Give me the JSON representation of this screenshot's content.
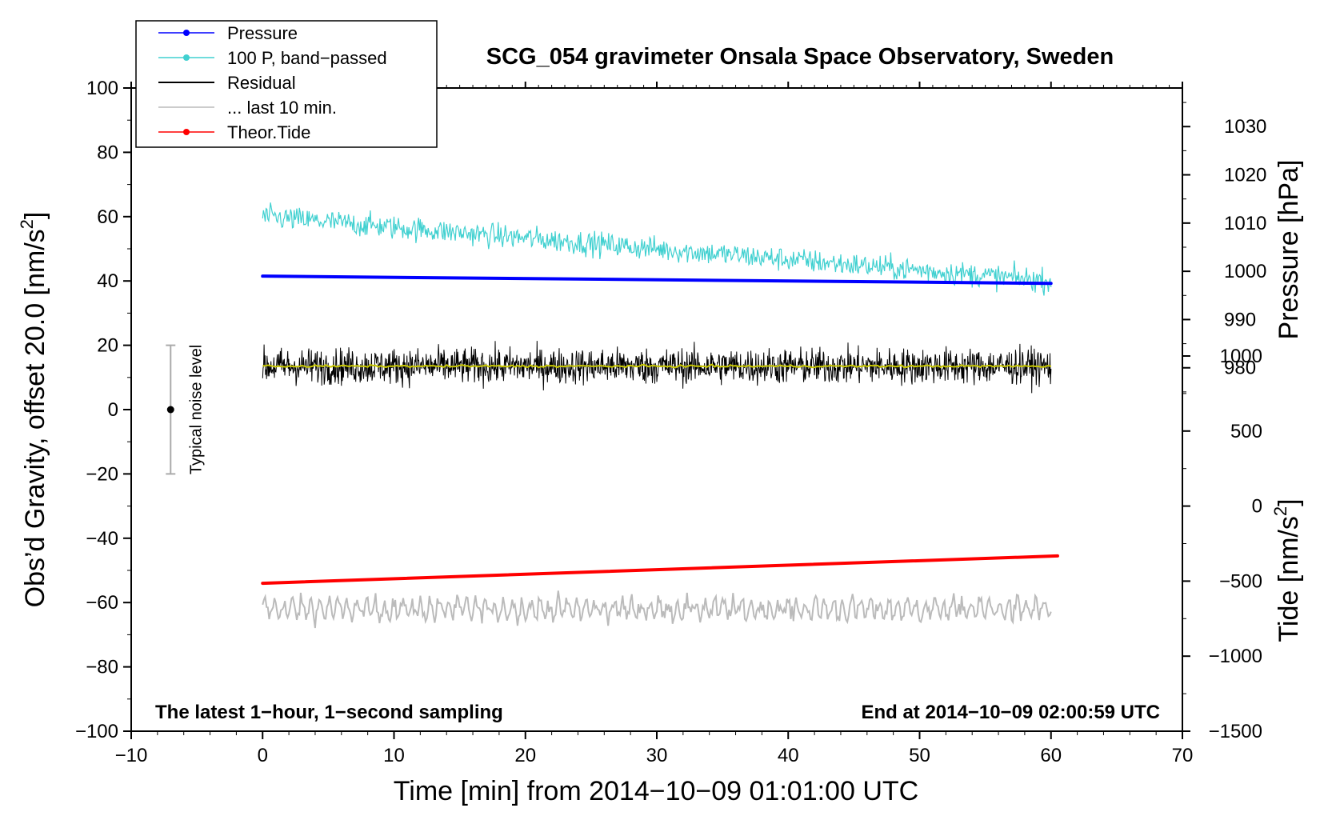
{
  "chart_data": {
    "type": "line",
    "title": "SCG_054 gravimeter Onsala Space Observatory, Sweden",
    "xlabel": "Time [min] from 2014−10−09 01:01:00 UTC",
    "ylabel_left_prefix": "Obs’d Gravity, offset 20.0 [nm/s",
    "ylabel_left_sup": "2",
    "ylabel_left_suffix": "]",
    "ylabel_pressure": "Pressure [hPa]",
    "ylabel_tide_prefix": "Tide [nm/s",
    "ylabel_tide_sup": "2",
    "ylabel_tide_suffix": "]",
    "xlim": [
      -10,
      70
    ],
    "ylim_left": [
      -100,
      100
    ],
    "x_ticks": [
      -10,
      0,
      10,
      20,
      30,
      40,
      50,
      60,
      70
    ],
    "x_tick_labels": [
      "−10",
      "0",
      "10",
      "20",
      "30",
      "40",
      "50",
      "60",
      "70"
    ],
    "y_left_ticks": [
      -100,
      -80,
      -60,
      -40,
      -20,
      0,
      20,
      40,
      60,
      80,
      100
    ],
    "y_left_tick_labels": [
      "−100",
      "−80",
      "−60",
      "−40",
      "−20",
      "0",
      "20",
      "40",
      "60",
      "80",
      "100"
    ],
    "pressure_axis": {
      "ticks": [
        980,
        990,
        1000,
        1010,
        1020,
        1030
      ],
      "tick_labels": [
        "980",
        "990",
        "1000",
        "1010",
        "1020",
        "1030"
      ],
      "map_ref": [
        [
          980,
          13
        ],
        [
          1030,
          88
        ]
      ]
    },
    "tide_axis": {
      "ticks": [
        -1500,
        -1000,
        -500,
        0,
        500,
        1000
      ],
      "tick_labels": [
        "−1500",
        "−1000",
        "−500",
        "0",
        "500",
        "1000"
      ],
      "map_ref": [
        [
          -1500,
          -100
        ],
        [
          1000,
          16.67
        ]
      ]
    },
    "series": [
      {
        "name": "Pressure",
        "legend": "Pressure",
        "color": "#0000ff",
        "marker": true,
        "start": [
          0,
          999.0
        ],
        "end": [
          60,
          997.5
        ]
      },
      {
        "name": "100 P, band-passed",
        "legend": "100 P, band−passed",
        "color": "#40d0d0",
        "marker": true,
        "trend_start": [
          0,
          60
        ],
        "trend_end": [
          60,
          40
        ],
        "noise_amplitude": 4
      },
      {
        "name": "Residual",
        "legend": "Residual",
        "color": "#000000",
        "marker": false,
        "mean": 13.5,
        "noise_amplitude": 6,
        "x_range": [
          0,
          60
        ]
      },
      {
        "name": "Residual smoothed",
        "legend": "",
        "color": "#c8c800",
        "marker": false,
        "mean": 13.5,
        "x_range": [
          0,
          60
        ]
      },
      {
        "name": "last 10 min",
        "legend": "... last 10 min.",
        "color": "#bbbbbb",
        "marker": false,
        "mean": -62,
        "noise_amplitude": 5,
        "x_range": [
          0,
          60
        ]
      },
      {
        "name": "Theor.Tide",
        "legend": "Theor.Tide",
        "color": "#ff0000",
        "marker": true,
        "start": [
          0,
          -54
        ],
        "end": [
          60.5,
          -45.5
        ]
      }
    ],
    "noise_bar": {
      "x": -7,
      "center": 0,
      "low": -20,
      "high": 20,
      "label": "Typical noise level"
    },
    "annotations": {
      "left": "The latest 1−hour, 1−second sampling",
      "right": "End at 2014−10−09 02:00:59 UTC"
    }
  }
}
